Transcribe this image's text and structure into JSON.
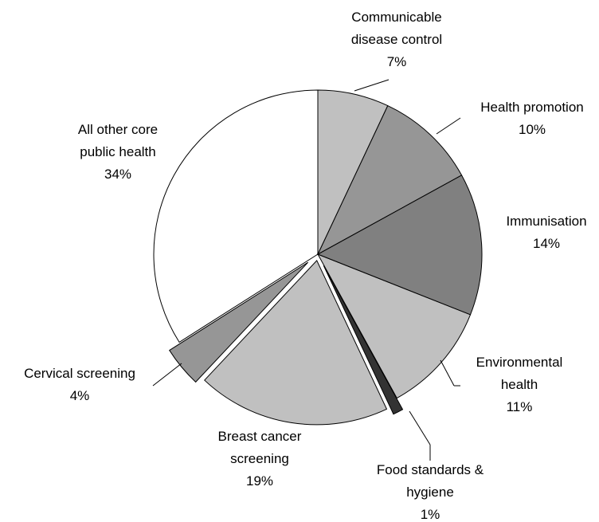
{
  "chart_data": {
    "type": "pie",
    "categories": [
      "Communicable disease control",
      "Health promotion",
      "Immunisation",
      "Environmental health",
      "Food standards & hygiene",
      "Breast cancer screening",
      "Cervical screening",
      "All other core public health"
    ],
    "values": [
      7,
      10,
      14,
      11,
      1,
      19,
      4,
      34
    ],
    "value_labels": [
      "7%",
      "10%",
      "14%",
      "11%",
      "1%",
      "19%",
      "4%",
      "34%"
    ],
    "colors": [
      "#c0c0c0",
      "#969696",
      "#808080",
      "#c0c0c0",
      "#333333",
      "#c0c0c0",
      "#969696",
      "#ffffff"
    ]
  }
}
